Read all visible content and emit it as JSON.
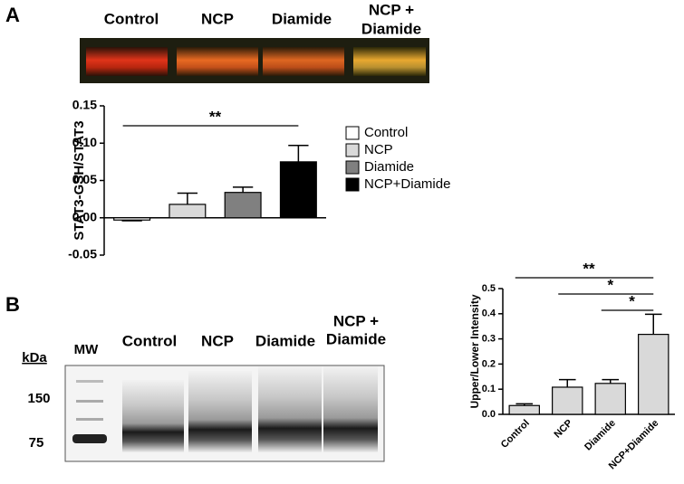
{
  "panels": {
    "a": "A",
    "b": "B"
  },
  "blot_a": {
    "lanes": [
      "Control",
      "NCP",
      "Diamide",
      [
        "NCP +",
        "Diamide"
      ]
    ]
  },
  "blot_b": {
    "marker": "MW",
    "unit": "kDa",
    "sizes": [
      "150",
      "75"
    ],
    "lanes": [
      "Control",
      "NCP",
      "Diamide",
      [
        "NCP +",
        "Diamide"
      ]
    ]
  },
  "chart_data": [
    {
      "type": "bar",
      "ylabel": "STAT3-GSH/STAT3",
      "categories": [
        "Control",
        "NCP",
        "Diamide",
        "NCP+Diamide"
      ],
      "values": [
        -0.003,
        0.018,
        0.034,
        0.075
      ],
      "errors": [
        0.001,
        0.015,
        0.007,
        0.022
      ],
      "colors": [
        "#ffffff",
        "#d9d9d9",
        "#808080",
        "#000000"
      ],
      "ylim": [
        -0.05,
        0.15
      ],
      "yticks": [
        -0.05,
        {
          "value": 0,
          "label": "0.00"
        },
        0.05,
        {
          "value": 0.1,
          "label": "0.10"
        },
        0.15
      ],
      "annotations": [
        {
          "label": "**",
          "start": "Control",
          "end": "NCP+Diamide"
        }
      ],
      "legend": "right"
    },
    {
      "type": "bar",
      "ylabel": "Upper/Lower Intensity",
      "categories": [
        "Control",
        "NCP",
        "Diamide",
        "NCP+Diamide"
      ],
      "values": [
        0.035,
        0.108,
        0.123,
        0.318
      ],
      "errors": [
        0.007,
        0.03,
        0.015,
        0.08
      ],
      "color": "#d9d9d9",
      "ylim": [
        0,
        0.5
      ],
      "yticks": [
        {
          "value": 0,
          "label": "0.0"
        },
        0.1,
        0.2,
        0.3,
        0.4,
        0.5
      ],
      "annotations": [
        {
          "label": "**",
          "start": "Control",
          "end": "NCP+Diamide"
        },
        {
          "label": "*",
          "start": "NCP",
          "end": "NCP+Diamide"
        },
        {
          "label": "*",
          "start": "Diamide",
          "end": "NCP+Diamide"
        }
      ]
    }
  ]
}
